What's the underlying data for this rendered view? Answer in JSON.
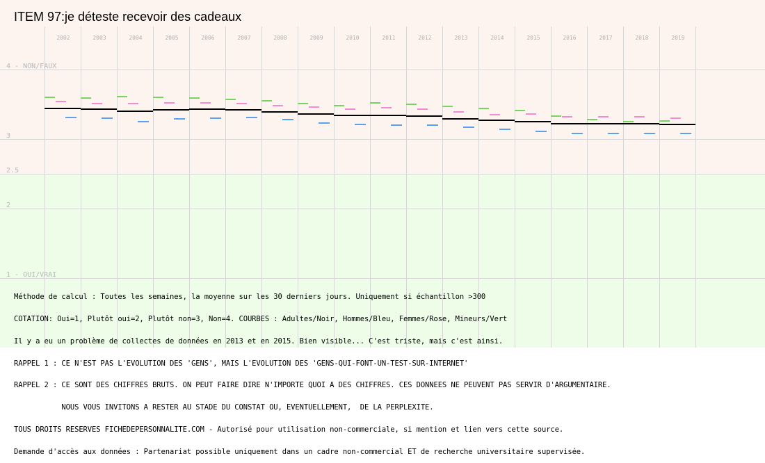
{
  "chart_data": {
    "type": "line",
    "title": "ITEM 97:je déteste recevoir des cadeaux",
    "x": [
      "2002",
      "2003",
      "2004",
      "2005",
      "2006",
      "2007",
      "2008",
      "2009",
      "2010",
      "2011",
      "2012",
      "2013",
      "2014",
      "2015",
      "2016",
      "2017",
      "2018",
      "2019"
    ],
    "ylim": [
      1,
      4.5
    ],
    "y_ticks": [
      {
        "value": 4,
        "label": "4 - NON/FAUX"
      },
      {
        "value": 3,
        "label": "3"
      },
      {
        "value": 2.5,
        "label": "2.5"
      },
      {
        "value": 2,
        "label": "2"
      },
      {
        "value": 1,
        "label": "1 - OUI/VRAI"
      }
    ],
    "series": [
      {
        "key": "adultes",
        "color": "#000000",
        "values": [
          3.44,
          3.43,
          3.4,
          3.42,
          3.43,
          3.42,
          3.39,
          3.36,
          3.34,
          3.34,
          3.33,
          3.29,
          3.27,
          3.25,
          3.22,
          3.22,
          3.22,
          3.21
        ]
      },
      {
        "key": "hommes",
        "color": "#5aa0f0",
        "values": [
          3.31,
          3.3,
          3.25,
          3.29,
          3.3,
          3.31,
          3.28,
          3.23,
          3.21,
          3.2,
          3.2,
          3.17,
          3.14,
          3.11,
          3.08,
          3.08,
          3.08,
          3.08
        ]
      },
      {
        "key": "femmes",
        "color": "#f08cd2",
        "values": [
          3.54,
          3.51,
          3.51,
          3.52,
          3.52,
          3.51,
          3.48,
          3.46,
          3.43,
          3.45,
          3.43,
          3.39,
          3.35,
          3.36,
          3.32,
          3.32,
          3.32,
          3.3
        ]
      },
      {
        "key": "mineurs",
        "color": "#78d264",
        "values": [
          3.6,
          3.59,
          3.61,
          3.6,
          3.59,
          3.57,
          3.55,
          3.51,
          3.48,
          3.52,
          3.5,
          3.47,
          3.44,
          3.41,
          3.33,
          3.28,
          3.25,
          3.26
        ]
      }
    ],
    "bands": {
      "upper_color": "#fdf3ef",
      "lower_color": "#edfde8",
      "split_value": 2.5
    },
    "grid": true
  },
  "notes": [
    "Méthode de calcul : Toutes les semaines, la moyenne sur les 30 derniers jours. Uniquement si échantillon >300",
    "COTATION: Oui=1, Plutôt oui=2, Plutôt non=3, Non=4. COURBES : Adultes/Noir, Hommes/Bleu, Femmes/Rose, Mineurs/Vert",
    "Il y a eu un problème de collectes de données en 2013 et en 2015. Bien visible... C'est triste, mais c'est ainsi.",
    "RAPPEL 1 : CE N'EST PAS L'EVOLUTION DES 'GENS', MAIS L'EVOLUTION DES 'GENS-QUI-FONT-UN-TEST-SUR-INTERNET'",
    "RAPPEL 2 : CE SONT DES CHIFFRES BRUTS. ON PEUT FAIRE DIRE N'IMPORTE QUOI A DES CHIFFRES. CES DONNEES NE PEUVENT PAS SERVIR D'ARGUMENTAIRE.",
    "           NOUS VOUS INVITONS A RESTER AU STADE DU CONSTAT OU, EVENTUELLEMENT,  DE LA PERPLEXITE.",
    "TOUS DROITS RESERVES FICHEDEPERSONNALITE.COM - Autorisé pour utilisation non-commerciale, si mention et lien vers cette source.",
    "Demande d'accès aux données : Partenariat possible uniquement dans un cadre non-commercial ET de recherche universitaire supervisée."
  ]
}
